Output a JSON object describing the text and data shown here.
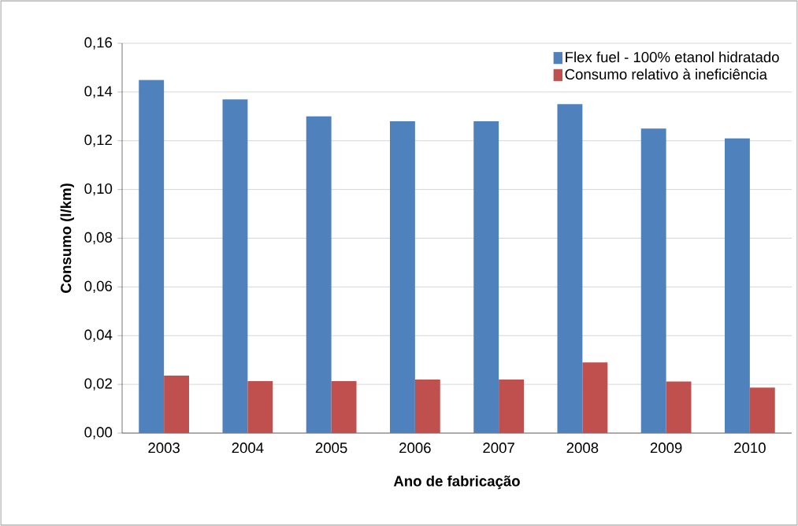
{
  "chart_data": {
    "type": "bar",
    "xlabel": "Ano de fabricação",
    "ylabel": "Consumo (l/km)",
    "categories": [
      "2003",
      "2004",
      "2005",
      "2006",
      "2007",
      "2008",
      "2009",
      "2010"
    ],
    "series": [
      {
        "name": "Flex fuel - 100% etanol hidratado",
        "color": "#4f81bd",
        "values": [
          0.145,
          0.137,
          0.13,
          0.128,
          0.128,
          0.135,
          0.125,
          0.121
        ]
      },
      {
        "name": "Consumo relativo à ineficiência",
        "color": "#c0504d",
        "values": [
          0.0236,
          0.0213,
          0.0213,
          0.022,
          0.022,
          0.029,
          0.0212,
          0.0187
        ]
      }
    ],
    "ylim": [
      0,
      0.16
    ],
    "yticks": [
      {
        "value": 0,
        "label": "0,00"
      },
      {
        "value": 0.02,
        "label": "0,02"
      },
      {
        "value": 0.04,
        "label": "0,04"
      },
      {
        "value": 0.06,
        "label": "0,06"
      },
      {
        "value": 0.08,
        "label": "0,08"
      },
      {
        "value": 0.1,
        "label": "0,10"
      },
      {
        "value": 0.12,
        "label": "0,12"
      },
      {
        "value": 0.14,
        "label": "0,14"
      },
      {
        "value": 0.16,
        "label": "0,16"
      }
    ],
    "grid": "y",
    "legend": "top right"
  }
}
